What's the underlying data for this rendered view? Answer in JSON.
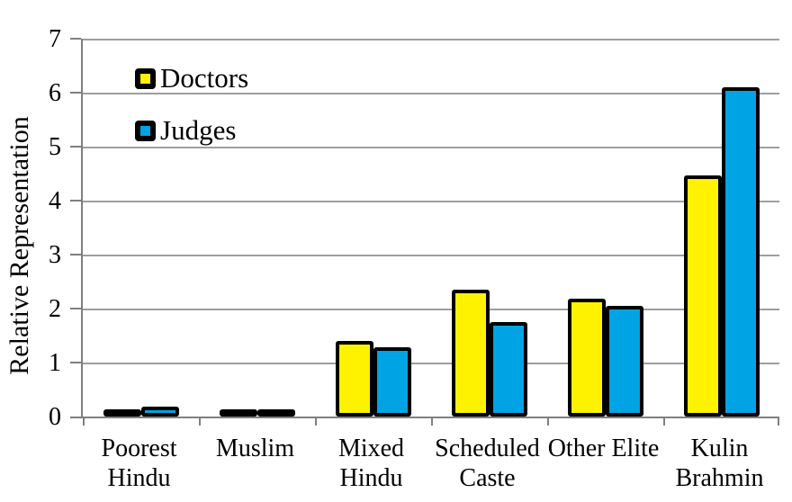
{
  "chart_data": {
    "type": "bar",
    "title": "",
    "xlabel": "",
    "ylabel": "Relative Representation",
    "ylim": [
      0,
      7
    ],
    "ytick_step": 1,
    "yticks": [
      "0",
      "1",
      "2",
      "3",
      "4",
      "5",
      "6",
      "7"
    ],
    "grid": true,
    "legend_position": "top-left-inside",
    "categories": [
      "Poorest Hindu",
      "Muslim",
      "Mixed Hindu",
      "Scheduled Caste",
      "Other Elite",
      "Kulin Brahmin"
    ],
    "category_label_lines": [
      [
        "Poorest",
        "Hindu"
      ],
      [
        "Muslim"
      ],
      [
        "Mixed",
        "Hindu"
      ],
      [
        "Scheduled",
        "Caste"
      ],
      [
        "Other Elite"
      ],
      [
        "Kulin",
        "Brahmin"
      ]
    ],
    "series": [
      {
        "name": "Doctors",
        "color": "#FFF200",
        "values": [
          0.07,
          0.1,
          1.4,
          2.35,
          2.18,
          4.47
        ]
      },
      {
        "name": "Judges",
        "color": "#00A4E4",
        "values": [
          0.18,
          0.13,
          1.28,
          1.75,
          2.05,
          6.1
        ]
      }
    ]
  },
  "colors": {
    "bar_border": "#000000",
    "gridline": "#9E9E9E",
    "axis": "#7F7F7F",
    "text": "#000000",
    "background": "#FFFFFF"
  }
}
